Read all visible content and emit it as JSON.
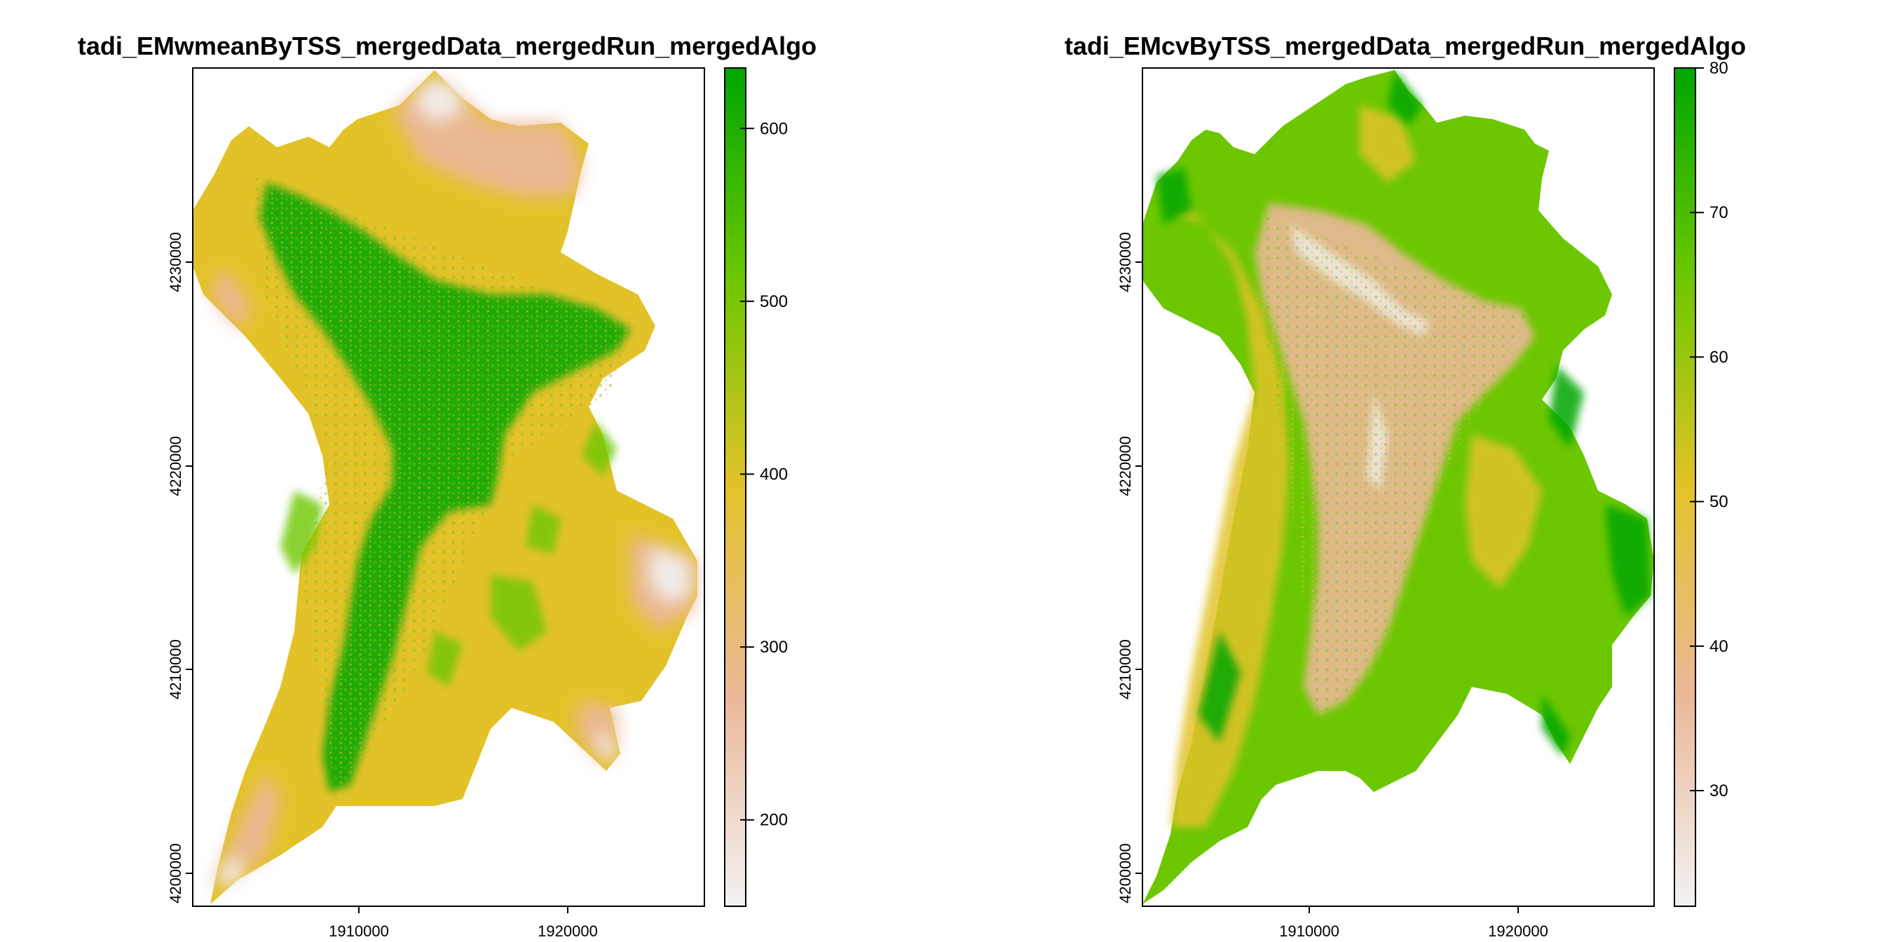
{
  "chart_data": [
    {
      "type": "heatmap",
      "title": "tadi_EMwmeanByTSS_mergedData_mergedRun_mergedAlgo",
      "xlabel": "",
      "ylabel": "",
      "xlim": [
        1902000,
        1926500
      ],
      "ylim": [
        4199800,
        4241000
      ],
      "x_ticks": [
        1910000,
        1920000
      ],
      "x_tick_labels": [
        "1910000",
        "1920000"
      ],
      "y_ticks": [
        4200000,
        4210000,
        4220000,
        4230000
      ],
      "y_tick_labels": [
        "4200000",
        "4210000",
        "4220000",
        "4230000"
      ],
      "colorbar": {
        "range": [
          150,
          635
        ],
        "ticks": [
          200,
          300,
          400,
          500,
          600
        ],
        "tick_labels": [
          "200",
          "300",
          "400",
          "500",
          "600"
        ],
        "colors": [
          "#f2f2f2",
          "#ebb898",
          "#e3c229",
          "#6cc700",
          "#00a600"
        ]
      },
      "grid": false,
      "legend": "right"
    },
    {
      "type": "heatmap",
      "title": "tadi_EMcvByTSS_mergedData_mergedRun_mergedAlgo",
      "xlabel": "",
      "ylabel": "",
      "xlim": [
        1902000,
        1926500
      ],
      "ylim": [
        4199800,
        4241000
      ],
      "x_ticks": [
        1910000,
        1920000
      ],
      "x_tick_labels": [
        "1910000",
        "1920000"
      ],
      "y_ticks": [
        4200000,
        4210000,
        4220000,
        4230000
      ],
      "y_tick_labels": [
        "4200000",
        "4210000",
        "4220000",
        "4230000"
      ],
      "colorbar": {
        "range": [
          22,
          80
        ],
        "ticks": [
          30,
          40,
          50,
          60,
          70,
          80
        ],
        "tick_labels": [
          "30",
          "40",
          "50",
          "60",
          "70",
          "80"
        ],
        "colors": [
          "#f2f2f2",
          "#ebb898",
          "#e3c229",
          "#6cc700",
          "#00a600"
        ]
      },
      "grid": false,
      "legend": "right"
    }
  ]
}
